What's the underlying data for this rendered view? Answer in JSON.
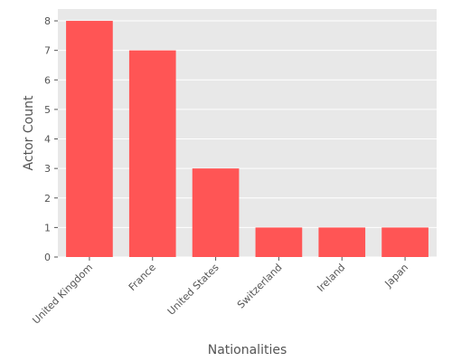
{
  "chart_data": {
    "type": "bar",
    "categories": [
      "United Kingdom",
      "France",
      "United States",
      "Switzerland",
      "Ireland",
      "Japan"
    ],
    "values": [
      8,
      7,
      3,
      1,
      1,
      1
    ],
    "title": "",
    "xlabel": "Nationalities",
    "ylabel": "Actor Count",
    "ylim": [
      0,
      8.4
    ],
    "yticks": [
      0,
      1,
      2,
      3,
      4,
      5,
      6,
      7,
      8
    ],
    "grid": true,
    "colors": {
      "bar": "#ff5555",
      "plot_background": "#e8e8e8",
      "grid": "#ffffff",
      "text": "#555555"
    }
  }
}
